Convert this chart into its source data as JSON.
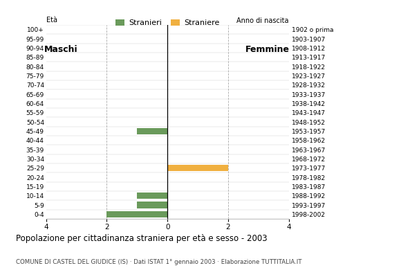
{
  "age_groups": [
    "0-4",
    "5-9",
    "10-14",
    "15-19",
    "20-24",
    "25-29",
    "30-34",
    "35-39",
    "40-44",
    "45-49",
    "50-54",
    "55-59",
    "60-64",
    "65-69",
    "70-74",
    "75-79",
    "80-84",
    "85-89",
    "90-94",
    "95-99",
    "100+"
  ],
  "birth_years": [
    "1998-2002",
    "1993-1997",
    "1988-1992",
    "1983-1987",
    "1978-1982",
    "1973-1977",
    "1968-1972",
    "1963-1967",
    "1958-1962",
    "1953-1957",
    "1948-1952",
    "1943-1947",
    "1938-1942",
    "1933-1937",
    "1928-1932",
    "1923-1927",
    "1918-1922",
    "1913-1917",
    "1908-1912",
    "1903-1907",
    "1902 o prima"
  ],
  "males": [
    2,
    1,
    1,
    0,
    0,
    0,
    0,
    0,
    0,
    1,
    0,
    0,
    0,
    0,
    0,
    0,
    0,
    0,
    0,
    0,
    0
  ],
  "females": [
    0,
    0,
    0,
    0,
    0,
    2,
    0,
    0,
    0,
    0,
    0,
    0,
    0,
    0,
    0,
    0,
    0,
    0,
    0,
    0,
    0
  ],
  "male_color": "#6a9a5b",
  "female_color": "#f0b040",
  "title": "Popolazione per cittadinanza straniera per età e sesso - 2003",
  "subtitle": "COMUNE DI CASTEL DEL GIUDICE (IS) · Dati ISTAT 1° gennaio 2003 · Elaborazione TUTTITALIA.IT",
  "legend_male": "Stranieri",
  "legend_female": "Straniere",
  "label_eta": "Età",
  "label_anno": "Anno di nascita",
  "label_maschi": "Maschi",
  "label_femmine": "Femmine",
  "xlim": 4,
  "background_color": "#ffffff"
}
